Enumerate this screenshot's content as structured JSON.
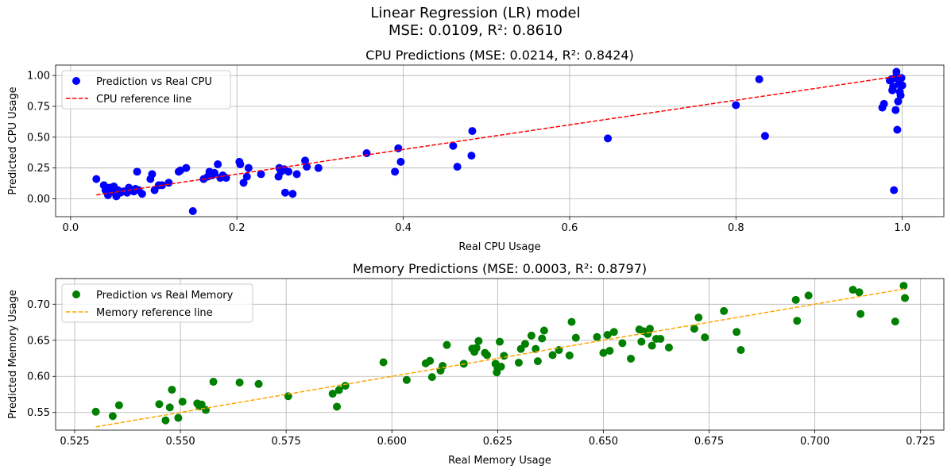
{
  "figure": {
    "title_line1": "Linear Regression (LR) model",
    "title_line2": "MSE: 0.0109, R²: 0.8610"
  },
  "chart_data": [
    {
      "type": "scatter",
      "title": "CPU Predictions (MSE: 0.0214, R²: 0.8424)",
      "xlabel": "Real CPU Usage",
      "ylabel": "Predicted CPU Usage",
      "xlim": [
        -0.018,
        1.05
      ],
      "ylim": [
        -0.145,
        1.085
      ],
      "xticks": [
        "0.0",
        "0.2",
        "0.4",
        "0.6",
        "0.8",
        "1.0"
      ],
      "xtick_values": [
        0,
        0.2,
        0.4,
        0.6,
        0.8,
        1.0
      ],
      "yticks": [
        "0.00",
        "0.25",
        "0.50",
        "0.75",
        "1.00"
      ],
      "ytick_values": [
        0,
        0.25,
        0.5,
        0.75,
        1.0
      ],
      "grid": true,
      "legend_position": "top-left",
      "series": [
        {
          "name": "Prediction vs Real CPU",
          "kind": "points",
          "color": "#0000ff",
          "points": [
            [
              0.031,
              0.16
            ],
            [
              0.04,
              0.11
            ],
            [
              0.042,
              0.07
            ],
            [
              0.044,
              0.05
            ],
            [
              0.045,
              0.03
            ],
            [
              0.047,
              0.09
            ],
            [
              0.048,
              0.06
            ],
            [
              0.05,
              0.08
            ],
            [
              0.052,
              0.1
            ],
            [
              0.053,
              0.05
            ],
            [
              0.055,
              0.02
            ],
            [
              0.057,
              0.07
            ],
            [
              0.06,
              0.05
            ],
            [
              0.064,
              0.06
            ],
            [
              0.068,
              0.05
            ],
            [
              0.07,
              0.09
            ],
            [
              0.073,
              0.07
            ],
            [
              0.076,
              0.06
            ],
            [
              0.078,
              0.08
            ],
            [
              0.08,
              0.22
            ],
            [
              0.082,
              0.07
            ],
            [
              0.086,
              0.04
            ],
            [
              0.096,
              0.16
            ],
            [
              0.098,
              0.2
            ],
            [
              0.101,
              0.07
            ],
            [
              0.106,
              0.11
            ],
            [
              0.11,
              0.11
            ],
            [
              0.118,
              0.13
            ],
            [
              0.13,
              0.22
            ],
            [
              0.132,
              0.23
            ],
            [
              0.139,
              0.25
            ],
            [
              0.147,
              -0.1
            ],
            [
              0.16,
              0.16
            ],
            [
              0.165,
              0.18
            ],
            [
              0.167,
              0.22
            ],
            [
              0.17,
              0.19
            ],
            [
              0.173,
              0.21
            ],
            [
              0.177,
              0.28
            ],
            [
              0.18,
              0.17
            ],
            [
              0.183,
              0.19
            ],
            [
              0.187,
              0.17
            ],
            [
              0.203,
              0.3
            ],
            [
              0.204,
              0.28
            ],
            [
              0.208,
              0.13
            ],
            [
              0.212,
              0.18
            ],
            [
              0.214,
              0.25
            ],
            [
              0.229,
              0.2
            ],
            [
              0.25,
              0.18
            ],
            [
              0.251,
              0.25
            ],
            [
              0.253,
              0.22
            ],
            [
              0.257,
              0.24
            ],
            [
              0.258,
              0.05
            ],
            [
              0.262,
              0.22
            ],
            [
              0.267,
              0.04
            ],
            [
              0.272,
              0.2
            ],
            [
              0.282,
              0.31
            ],
            [
              0.284,
              0.26
            ],
            [
              0.298,
              0.25
            ],
            [
              0.356,
              0.37
            ],
            [
              0.39,
              0.22
            ],
            [
              0.394,
              0.41
            ],
            [
              0.397,
              0.3
            ],
            [
              0.46,
              0.43
            ],
            [
              0.465,
              0.26
            ],
            [
              0.482,
              0.35
            ],
            [
              0.483,
              0.55
            ],
            [
              0.646,
              0.49
            ],
            [
              0.8,
              0.76
            ],
            [
              0.828,
              0.97
            ],
            [
              0.835,
              0.51
            ],
            [
              0.976,
              0.74
            ],
            [
              0.978,
              0.77
            ],
            [
              0.985,
              0.96
            ],
            [
              0.987,
              0.97
            ],
            [
              0.988,
              0.88
            ],
            [
              0.989,
              0.91
            ],
            [
              0.99,
              0.07
            ],
            [
              0.991,
              0.98
            ],
            [
              0.992,
              0.72
            ],
            [
              0.993,
              1.03
            ],
            [
              0.994,
              0.56
            ],
            [
              0.995,
              0.79
            ],
            [
              0.996,
              0.93
            ],
            [
              0.997,
              0.87
            ],
            [
              0.998,
              0.84
            ],
            [
              0.999,
              0.98
            ],
            [
              1.0,
              0.92
            ]
          ]
        },
        {
          "name": "CPU reference line",
          "kind": "dashed-line",
          "color": "#ff0000",
          "x": [
            0.031,
            1.0
          ],
          "y": [
            0.031,
            1.0
          ]
        }
      ]
    },
    {
      "type": "scatter",
      "title": "Memory Predictions (MSE: 0.0003, R²: 0.8797)",
      "xlabel": "Real Memory Usage",
      "ylabel": "Predicted Memory Usage",
      "xlim": [
        0.5205,
        0.7305
      ],
      "ylim": [
        0.5255,
        0.7355
      ],
      "xticks": [
        "0.525",
        "0.550",
        "0.575",
        "0.600",
        "0.625",
        "0.650",
        "0.675",
        "0.700",
        "0.725"
      ],
      "xtick_values": [
        0.525,
        0.55,
        0.575,
        0.6,
        0.625,
        0.65,
        0.675,
        0.7,
        0.725
      ],
      "yticks": [
        "0.55",
        "0.60",
        "0.65",
        "0.70"
      ],
      "ytick_values": [
        0.55,
        0.6,
        0.65,
        0.7
      ],
      "grid": true,
      "legend_position": "top-left",
      "series": [
        {
          "name": "Prediction vs Real Memory",
          "kind": "points",
          "color": "#008000",
          "points": [
            [
              0.53,
              0.551
            ],
            [
              0.534,
              0.545
            ],
            [
              0.5355,
              0.56
            ],
            [
              0.545,
              0.5615
            ],
            [
              0.5465,
              0.539
            ],
            [
              0.5475,
              0.557
            ],
            [
              0.548,
              0.5815
            ],
            [
              0.5495,
              0.5425
            ],
            [
              0.5505,
              0.565
            ],
            [
              0.554,
              0.5625
            ],
            [
              0.5545,
              0.5585
            ],
            [
              0.555,
              0.561
            ],
            [
              0.556,
              0.5535
            ],
            [
              0.5578,
              0.5925
            ],
            [
              0.564,
              0.5915
            ],
            [
              0.5685,
              0.5895
            ],
            [
              0.5755,
              0.5725
            ],
            [
              0.586,
              0.576
            ],
            [
              0.587,
              0.558
            ],
            [
              0.5875,
              0.581
            ],
            [
              0.589,
              0.587
            ],
            [
              0.598,
              0.6195
            ],
            [
              0.6035,
              0.595
            ],
            [
              0.608,
              0.618
            ],
            [
              0.609,
              0.6215
            ],
            [
              0.6095,
              0.599
            ],
            [
              0.6115,
              0.608
            ],
            [
              0.612,
              0.6145
            ],
            [
              0.613,
              0.6435
            ],
            [
              0.617,
              0.6175
            ],
            [
              0.619,
              0.6385
            ],
            [
              0.6195,
              0.634
            ],
            [
              0.62,
              0.6395
            ],
            [
              0.6205,
              0.649
            ],
            [
              0.622,
              0.6325
            ],
            [
              0.6225,
              0.6295
            ],
            [
              0.6245,
              0.6175
            ],
            [
              0.6248,
              0.6055
            ],
            [
              0.625,
              0.611
            ],
            [
              0.6255,
              0.648
            ],
            [
              0.6258,
              0.6135
            ],
            [
              0.6265,
              0.6285
            ],
            [
              0.63,
              0.619
            ],
            [
              0.6305,
              0.638
            ],
            [
              0.6315,
              0.645
            ],
            [
              0.633,
              0.6565
            ],
            [
              0.634,
              0.638
            ],
            [
              0.6345,
              0.621
            ],
            [
              0.6355,
              0.6525
            ],
            [
              0.636,
              0.6635
            ],
            [
              0.638,
              0.6295
            ],
            [
              0.6395,
              0.6365
            ],
            [
              0.642,
              0.629
            ],
            [
              0.6425,
              0.6755
            ],
            [
              0.6435,
              0.6535
            ],
            [
              0.6485,
              0.6545
            ],
            [
              0.65,
              0.6325
            ],
            [
              0.651,
              0.6575
            ],
            [
              0.6515,
              0.6355
            ],
            [
              0.6525,
              0.6615
            ],
            [
              0.6545,
              0.646
            ],
            [
              0.6565,
              0.6245
            ],
            [
              0.6585,
              0.665
            ],
            [
              0.659,
              0.648
            ],
            [
              0.6595,
              0.6625
            ],
            [
              0.6605,
              0.659
            ],
            [
              0.661,
              0.666
            ],
            [
              0.6615,
              0.6425
            ],
            [
              0.6625,
              0.652
            ],
            [
              0.6635,
              0.652
            ],
            [
              0.6655,
              0.64
            ],
            [
              0.6715,
              0.666
            ],
            [
              0.6725,
              0.6815
            ],
            [
              0.674,
              0.654
            ],
            [
              0.6785,
              0.6905
            ],
            [
              0.6815,
              0.6615
            ],
            [
              0.6825,
              0.6365
            ],
            [
              0.6955,
              0.706
            ],
            [
              0.6958,
              0.677
            ],
            [
              0.6985,
              0.712
            ],
            [
              0.709,
              0.72
            ],
            [
              0.7105,
              0.7165
            ],
            [
              0.7108,
              0.6865
            ],
            [
              0.719,
              0.676
            ],
            [
              0.721,
              0.7255
            ],
            [
              0.7213,
              0.7085
            ]
          ]
        },
        {
          "name": "Memory reference line",
          "kind": "dashed-line",
          "color": "#ffa500",
          "x": [
            0.53,
            0.7213
          ],
          "y": [
            0.53,
            0.7213
          ]
        }
      ]
    }
  ]
}
